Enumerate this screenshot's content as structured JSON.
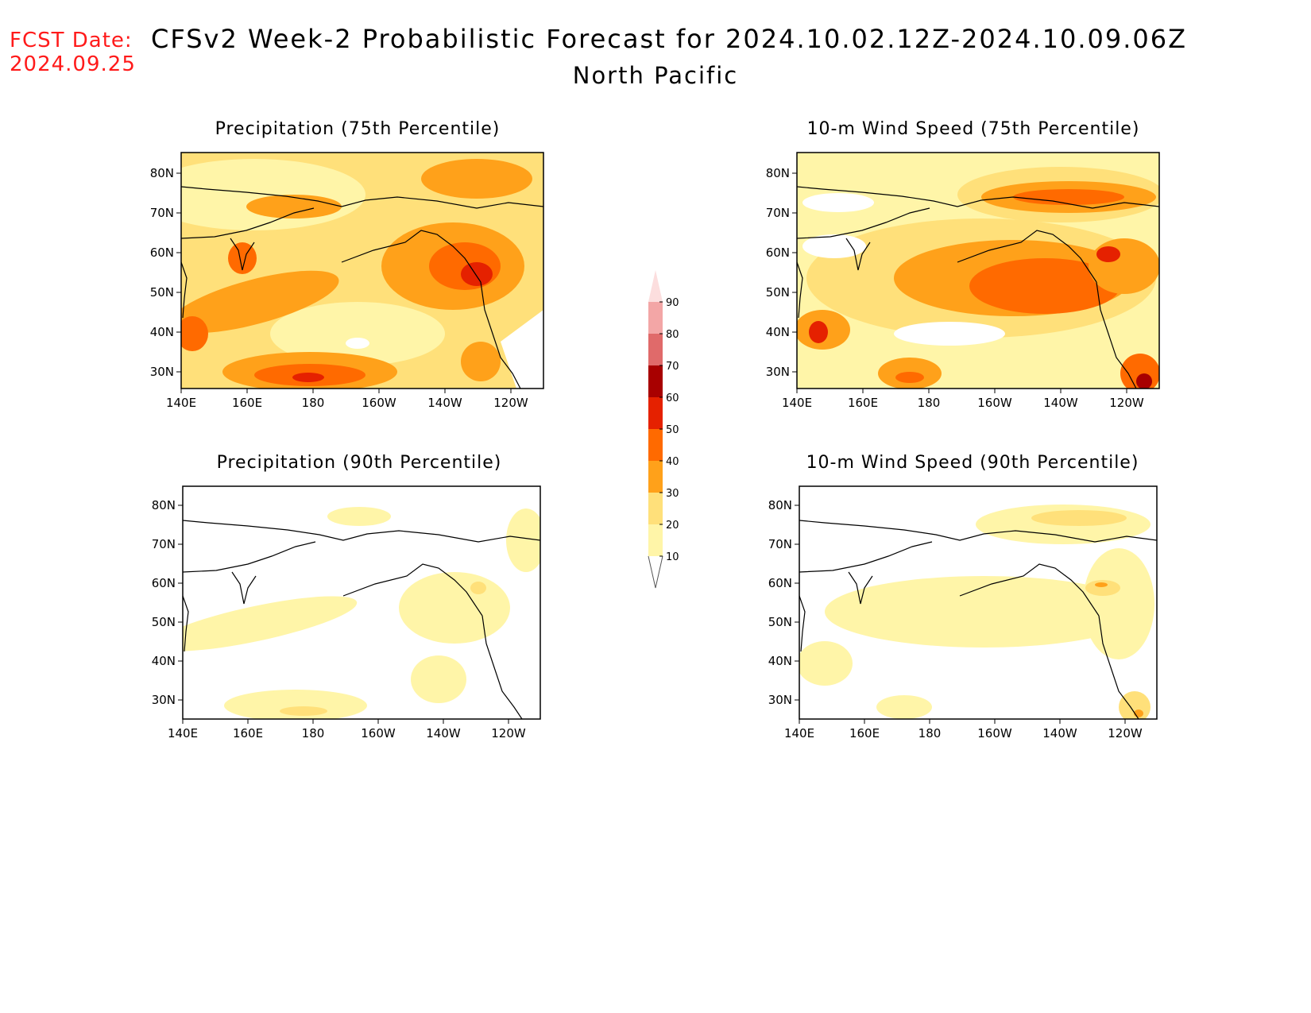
{
  "header": {
    "fcst_label": "FCST Date:",
    "fcst_date": "2024.09.25",
    "title": "CFSv2 Week-2 Probabilistic Forecast for 2024.10.02.12Z-2024.10.09.06Z",
    "subtitle": "North Pacific"
  },
  "axes": {
    "lon_labels": [
      "140E",
      "160E",
      "180",
      "160W",
      "140W",
      "120W"
    ],
    "lat_labels": [
      "80N",
      "70N",
      "60N",
      "50N",
      "40N",
      "30N"
    ]
  },
  "panels": [
    {
      "id": "precip-75",
      "title": "Precipitation (75th Percentile)"
    },
    {
      "id": "wind-75",
      "title": "10-m Wind Speed (75th Percentile)"
    },
    {
      "id": "precip-90",
      "title": "Precipitation (90th Percentile)"
    },
    {
      "id": "wind-90",
      "title": "10-m Wind Speed (90th Percentile)"
    }
  ],
  "colorbar": {
    "levels": [
      "10",
      "20",
      "30",
      "40",
      "50",
      "60",
      "70",
      "80",
      "90"
    ],
    "colors": [
      "#fff5a8",
      "#ffe07a",
      "#ffa11a",
      "#ff6a00",
      "#e52100",
      "#a80000",
      "#e06a6a",
      "#f3a6a6",
      "#fcdede"
    ]
  }
}
